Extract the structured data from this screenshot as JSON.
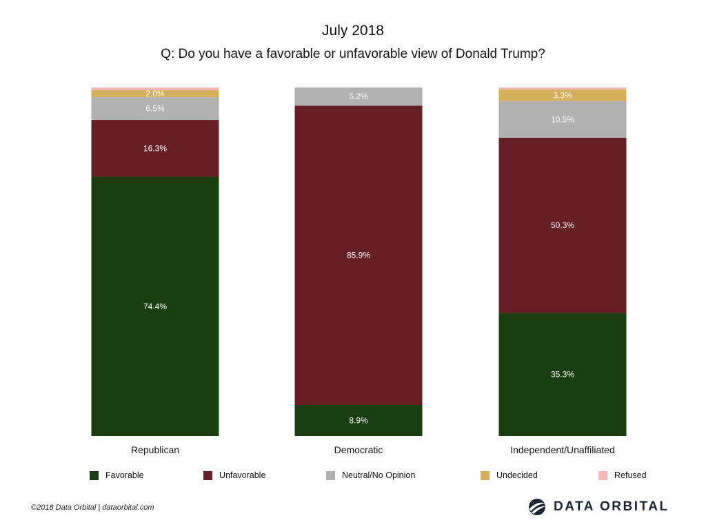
{
  "header": {
    "title": "July 2018",
    "subtitle": "Q: Do you have a favorable or unfavorable view of Donald Trump?"
  },
  "chart_data": {
    "type": "bar",
    "stacked": true,
    "title": "July 2018",
    "subtitle": "Q: Do you have a favorable or unfavorable view of Donald Trump?",
    "xlabel": "",
    "ylabel": "",
    "ylim": [
      0,
      100
    ],
    "grid": false,
    "legend_position": "bottom",
    "categories": [
      "Republican",
      "Democratic",
      "Independent/Unaffiliated"
    ],
    "series": [
      {
        "name": "Favorable",
        "color": "#1a3e12",
        "values": [
          74.4,
          8.9,
          35.3
        ]
      },
      {
        "name": "Unfavorable",
        "color": "#661f24",
        "values": [
          16.3,
          85.9,
          50.3
        ]
      },
      {
        "name": "Neutral/No Opinion",
        "color": "#b2b1b1",
        "values": [
          6.5,
          5.2,
          10.5
        ]
      },
      {
        "name": "Undecided",
        "color": "#d4af5a",
        "values": [
          2.0,
          0,
          3.3
        ]
      },
      {
        "name": "Refused",
        "color": "#f2b7b8",
        "values": [
          0.8,
          0,
          0.6
        ]
      }
    ],
    "data_labels": [
      [
        "74.4%",
        "8.9%",
        "35.3%"
      ],
      [
        "16.3%",
        "85.9%",
        "50.3%"
      ],
      [
        "6.5%",
        "5.2%",
        "10.5%"
      ],
      [
        "2.0%",
        "",
        "3.3%"
      ],
      [
        "",
        "",
        ""
      ]
    ]
  },
  "footer": {
    "copyright": "©2018 Data Orbital | dataorbital.com",
    "brand": "DATA ORBITAL"
  }
}
